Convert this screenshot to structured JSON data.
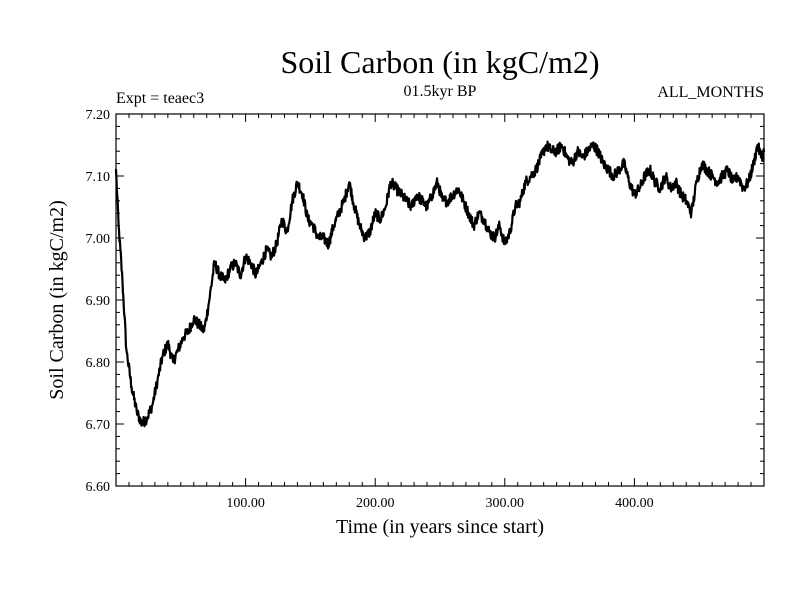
{
  "chart_data": {
    "type": "line",
    "title": "Soil Carbon (in kgC/m2)",
    "subtitle": "01.5kyr BP",
    "left_annotation": "Expt = teaec3",
    "right_annotation": "ALL_MONTHS",
    "xlabel": "Time (in years since start)",
    "ylabel": "Soil Carbon (in kgC/m2)",
    "xlim": [
      0,
      500
    ],
    "ylim": [
      6.6,
      7.2
    ],
    "x_ticks": [
      {
        "value": 100,
        "label": "100.00"
      },
      {
        "value": 200,
        "label": "200.00"
      },
      {
        "value": 300,
        "label": "300.00"
      },
      {
        "value": 400,
        "label": "400.00"
      }
    ],
    "y_ticks": [
      {
        "value": 6.6,
        "label": "6.60"
      },
      {
        "value": 6.7,
        "label": "6.70"
      },
      {
        "value": 6.8,
        "label": "6.80"
      },
      {
        "value": 6.9,
        "label": "6.90"
      },
      {
        "value": 7.0,
        "label": "7.00"
      },
      {
        "value": 7.1,
        "label": "7.10"
      },
      {
        "value": 7.2,
        "label": "7.20"
      }
    ],
    "grid": false,
    "line_color": "#000000",
    "series": [
      {
        "name": "Soil Carbon",
        "x": [
          0,
          2,
          5,
          8,
          12,
          16,
          20,
          24,
          28,
          32,
          36,
          40,
          44,
          48,
          52,
          56,
          60,
          64,
          68,
          72,
          76,
          80,
          84,
          88,
          92,
          96,
          100,
          104,
          108,
          112,
          116,
          120,
          124,
          128,
          132,
          136,
          140,
          144,
          148,
          152,
          156,
          160,
          164,
          168,
          172,
          176,
          180,
          184,
          188,
          192,
          196,
          200,
          204,
          208,
          212,
          216,
          220,
          224,
          228,
          232,
          236,
          240,
          244,
          248,
          252,
          256,
          260,
          264,
          268,
          272,
          276,
          280,
          284,
          288,
          292,
          296,
          300,
          304,
          308,
          312,
          316,
          320,
          324,
          328,
          332,
          336,
          340,
          344,
          348,
          352,
          356,
          360,
          364,
          368,
          372,
          376,
          380,
          384,
          388,
          392,
          396,
          400,
          404,
          408,
          412,
          416,
          420,
          424,
          428,
          432,
          436,
          440,
          444,
          448,
          452,
          456,
          460,
          464,
          468,
          472,
          476,
          480,
          484,
          488,
          492,
          495,
          498,
          500
        ],
        "values": [
          7.11,
          7.02,
          6.93,
          6.82,
          6.76,
          6.72,
          6.7,
          6.71,
          6.73,
          6.77,
          6.81,
          6.83,
          6.8,
          6.82,
          6.84,
          6.85,
          6.87,
          6.86,
          6.85,
          6.9,
          6.96,
          6.94,
          6.93,
          6.95,
          6.96,
          6.94,
          6.97,
          6.96,
          6.94,
          6.96,
          6.98,
          6.97,
          6.99,
          7.03,
          7.01,
          7.06,
          7.09,
          7.07,
          7.03,
          7.02,
          7.0,
          7.0,
          6.99,
          7.02,
          7.04,
          7.06,
          7.09,
          7.05,
          7.02,
          7.0,
          7.01,
          7.04,
          7.03,
          7.05,
          7.09,
          7.08,
          7.07,
          7.06,
          7.05,
          7.07,
          7.06,
          7.05,
          7.07,
          7.09,
          7.06,
          7.06,
          7.07,
          7.08,
          7.06,
          7.04,
          7.02,
          7.04,
          7.03,
          7.01,
          7.0,
          7.02,
          6.99,
          7.01,
          7.05,
          7.06,
          7.09,
          7.1,
          7.11,
          7.13,
          7.15,
          7.14,
          7.14,
          7.15,
          7.13,
          7.12,
          7.14,
          7.13,
          7.14,
          7.15,
          7.14,
          7.12,
          7.11,
          7.1,
          7.11,
          7.12,
          7.09,
          7.07,
          7.08,
          7.1,
          7.11,
          7.09,
          7.08,
          7.1,
          7.08,
          7.09,
          7.07,
          7.06,
          7.04,
          7.09,
          7.12,
          7.11,
          7.1,
          7.09,
          7.1,
          7.11,
          7.09,
          7.1,
          7.08,
          7.09,
          7.12,
          7.15,
          7.13,
          7.14
        ]
      }
    ]
  }
}
